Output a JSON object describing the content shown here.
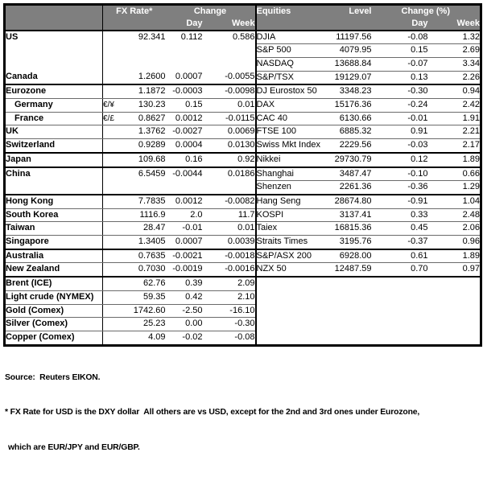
{
  "table": {
    "header": {
      "fx_rate": "FX Rate*",
      "change": "Change",
      "day": "Day",
      "week": "Week",
      "equities": "Equities",
      "level": "Level",
      "change_pct": "Change (%)"
    },
    "rows": [
      {
        "label": "US",
        "indent": false,
        "pair": "",
        "fx": "92.341",
        "fx_day": "0.112",
        "fx_week": "0.586",
        "eq": "DJIA",
        "level": "11197.56",
        "eq_day": "-0.08",
        "eq_week": "1.32",
        "sec": false,
        "ll": false,
        "rl": true
      },
      {
        "label": "",
        "indent": false,
        "pair": "",
        "fx": "",
        "fx_day": "",
        "fx_week": "",
        "eq": "S&P 500",
        "level": "4079.95",
        "eq_day": "0.15",
        "eq_week": "2.69",
        "sec": false,
        "ll": false,
        "rl": true
      },
      {
        "label": "",
        "indent": false,
        "pair": "",
        "fx": "",
        "fx_day": "",
        "fx_week": "",
        "eq": "NASDAQ",
        "level": "13688.84",
        "eq_day": "-0.07",
        "eq_week": "3.34",
        "sec": false,
        "ll": false,
        "rl": true
      },
      {
        "label": "Canada",
        "indent": false,
        "pair": "",
        "fx": "1.2600",
        "fx_day": "0.0007",
        "fx_week": "-0.0055",
        "eq": "S&P/TSX",
        "level": "19129.07",
        "eq_day": "0.13",
        "eq_week": "2.26",
        "sec": true,
        "ll": false,
        "rl": false
      },
      {
        "label": "Eurozone",
        "indent": false,
        "pair": "",
        "fx": "1.1872",
        "fx_day": "-0.0003",
        "fx_week": "-0.0098",
        "eq": "DJ Eurostox 50",
        "level": "3348.23",
        "eq_day": "-0.30",
        "eq_week": "0.94",
        "sec": false,
        "ll": true,
        "rl": true
      },
      {
        "label": "Germany",
        "indent": true,
        "pair": "€/¥",
        "fx": "130.23",
        "fx_day": "0.15",
        "fx_week": "0.01",
        "eq": "DAX",
        "level": "15176.36",
        "eq_day": "-0.24",
        "eq_week": "2.42",
        "sec": false,
        "ll": true,
        "rl": true
      },
      {
        "label": "France",
        "indent": true,
        "pair": "€/£",
        "fx": "0.8627",
        "fx_day": "0.0012",
        "fx_week": "-0.0115",
        "eq": "CAC 40",
        "level": "6130.66",
        "eq_day": "-0.01",
        "eq_week": "1.91",
        "sec": false,
        "ll": true,
        "rl": true
      },
      {
        "label": "UK",
        "indent": false,
        "pair": "",
        "fx": "1.3762",
        "fx_day": "-0.0027",
        "fx_week": "0.0069",
        "eq": "FTSE 100",
        "level": "6885.32",
        "eq_day": "0.91",
        "eq_week": "2.21",
        "sec": false,
        "ll": true,
        "rl": true
      },
      {
        "label": "Switzerland",
        "indent": false,
        "pair": "",
        "fx": "0.9289",
        "fx_day": "0.0004",
        "fx_week": "0.0130",
        "eq": "Swiss Mkt Index",
        "level": "2229.56",
        "eq_day": "-0.03",
        "eq_week": "2.17",
        "sec": true,
        "ll": false,
        "rl": false
      },
      {
        "label": "Japan",
        "indent": false,
        "pair": "",
        "fx": "109.68",
        "fx_day": "0.16",
        "fx_week": "0.92",
        "eq": "Nikkei",
        "level": "29730.79",
        "eq_day": "0.12",
        "eq_week": "1.89",
        "sec": true,
        "ll": false,
        "rl": false
      },
      {
        "label": "China",
        "indent": false,
        "pair": "",
        "fx": "6.5459",
        "fx_day": "-0.0044",
        "fx_week": "0.0186",
        "eq": "Shanghai",
        "level": "3487.47",
        "eq_day": "-0.10",
        "eq_week": "0.66",
        "sec": false,
        "ll": false,
        "rl": true
      },
      {
        "label": "",
        "indent": false,
        "pair": "",
        "fx": "",
        "fx_day": "",
        "fx_week": "",
        "eq": "Shenzen",
        "level": "2261.36",
        "eq_day": "-0.36",
        "eq_week": "1.29",
        "sec": true,
        "ll": false,
        "rl": false
      },
      {
        "label": "Hong Kong",
        "indent": false,
        "pair": "",
        "fx": "7.7835",
        "fx_day": "0.0012",
        "fx_week": "-0.0082",
        "eq": "Hang Seng",
        "level": "28674.80",
        "eq_day": "-0.91",
        "eq_week": "1.04",
        "sec": false,
        "ll": true,
        "rl": true
      },
      {
        "label": "South Korea",
        "indent": false,
        "pair": "",
        "fx": "1116.9",
        "fx_day": "2.0",
        "fx_week": "11.7",
        "eq": "KOSPI",
        "level": "3137.41",
        "eq_day": "0.33",
        "eq_week": "2.48",
        "sec": false,
        "ll": true,
        "rl": true
      },
      {
        "label": "Taiwan",
        "indent": false,
        "pair": "",
        "fx": "28.47",
        "fx_day": "-0.01",
        "fx_week": "0.01",
        "eq": "Taiex",
        "level": "16815.36",
        "eq_day": "0.45",
        "eq_week": "2.06",
        "sec": false,
        "ll": true,
        "rl": true
      },
      {
        "label": "Singapore",
        "indent": false,
        "pair": "",
        "fx": "1.3405",
        "fx_day": "0.0007",
        "fx_week": "0.0039",
        "eq": "Straits Times",
        "level": "3195.76",
        "eq_day": "-0.37",
        "eq_week": "0.96",
        "sec": true,
        "ll": false,
        "rl": false
      },
      {
        "label": "Australia",
        "indent": false,
        "pair": "",
        "fx": "0.7635",
        "fx_day": "-0.0021",
        "fx_week": "-0.0018",
        "eq": "S&P/ASX 200",
        "level": "6928.00",
        "eq_day": "0.61",
        "eq_week": "1.89",
        "sec": false,
        "ll": true,
        "rl": true
      },
      {
        "label": "New Zealand",
        "indent": false,
        "pair": "",
        "fx": "0.7030",
        "fx_day": "-0.0019",
        "fx_week": "-0.0016",
        "eq": "NZX 50",
        "level": "12487.59",
        "eq_day": "0.70",
        "eq_week": "0.97",
        "sec": true,
        "ll": false,
        "rl": false
      },
      {
        "label": "Brent (ICE)",
        "indent": false,
        "pair": "",
        "fx": "62.76",
        "fx_day": "0.39",
        "fx_week": "2.09",
        "eq": "",
        "level": "",
        "eq_day": "",
        "eq_week": "",
        "sec": false,
        "ll": true,
        "rl": false
      },
      {
        "label": "Light crude (NYMEX)",
        "indent": false,
        "pair": "",
        "fx": "59.35",
        "fx_day": "0.42",
        "fx_week": "2.10",
        "eq": "",
        "level": "",
        "eq_day": "",
        "eq_week": "",
        "sec": false,
        "ll": true,
        "rl": false
      },
      {
        "label": "Gold (Comex)",
        "indent": false,
        "pair": "",
        "fx": "1742.60",
        "fx_day": "-2.50",
        "fx_week": "-16.10",
        "eq": "",
        "level": "",
        "eq_day": "",
        "eq_week": "",
        "sec": false,
        "ll": true,
        "rl": false
      },
      {
        "label": "Silver (Comex)",
        "indent": false,
        "pair": "",
        "fx": "25.23",
        "fx_day": "0.00",
        "fx_week": "-0.30",
        "eq": "",
        "level": "",
        "eq_day": "",
        "eq_week": "",
        "sec": false,
        "ll": true,
        "rl": false
      },
      {
        "label": "Copper (Comex)",
        "indent": false,
        "pair": "",
        "fx": "4.09",
        "fx_day": "-0.02",
        "fx_week": "-0.08",
        "eq": "",
        "level": "",
        "eq_day": "",
        "eq_week": "",
        "sec": false,
        "ll": false,
        "rl": false
      }
    ]
  },
  "footer": {
    "source": "Source:  Reuters EIKON.",
    "note1": "* FX Rate for USD is the DXY dollar  All others are vs USD, except for the 2nd and 3rd ones under Eurozone,",
    "note2": "which are EUR/JPY and EUR/GBP."
  },
  "colors": {
    "header_bg": "#7f7f7f",
    "header_text": "#ffffff",
    "border": "#000000",
    "row_line": "#6b6b6b"
  }
}
